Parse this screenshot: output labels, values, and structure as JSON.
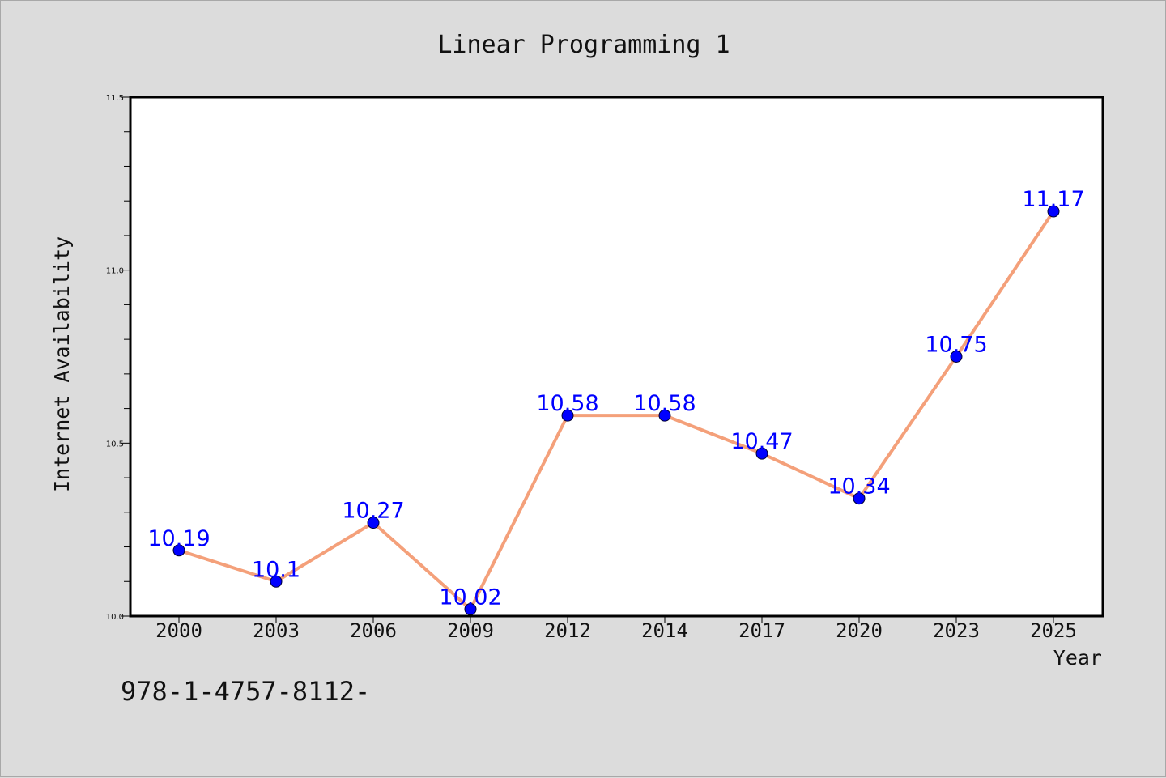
{
  "chart_data": {
    "type": "line",
    "title": "Linear Programming 1",
    "xlabel": "Year",
    "ylabel": "Internet Availability",
    "categories": [
      "2000",
      "2003",
      "2006",
      "2009",
      "2012",
      "2014",
      "2017",
      "2020",
      "2023",
      "2025"
    ],
    "series": [
      {
        "values": [
          10.19,
          10.1,
          10.27,
          10.02,
          10.58,
          10.58,
          10.47,
          10.34,
          10.75,
          11.17
        ]
      }
    ],
    "data_labels": [
      "10.19",
      "10.1",
      "10.27",
      "10.02",
      "10.58",
      "10.58",
      "10.47",
      "10.34",
      "10.75",
      "11.17"
    ],
    "ylim": [
      10.0,
      11.5
    ],
    "yticks": [
      "10.0",
      "10.5",
      "11.0",
      "11.5"
    ],
    "grid": false,
    "colors": {
      "line": "#f4a07a",
      "marker": "#0000ff",
      "label": "#0000ff",
      "background": "#dcdcdc",
      "plot_background": "#ffffff"
    }
  },
  "footer": {
    "text": "978-1-4757-8112-"
  }
}
